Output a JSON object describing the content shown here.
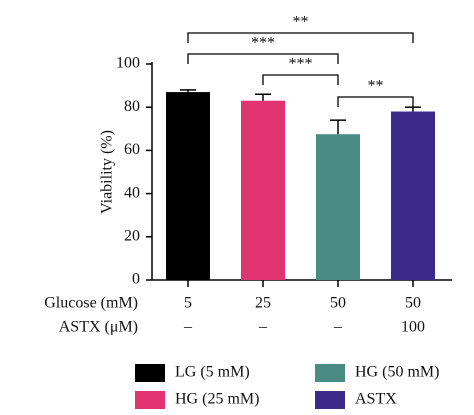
{
  "chart_data": {
    "type": "bar",
    "y_label": "Viability (%)",
    "categories": [
      "LG (5 mM)",
      "HG (25 mM)",
      "HG (50 mM)",
      "ASTX"
    ],
    "values": [
      87,
      83,
      67.5,
      78
    ],
    "errors": [
      1,
      3,
      6.5,
      2
    ],
    "colors": [
      "#000000",
      "#e0336f",
      "#4a8c84",
      "#3b2a8a"
    ],
    "ylim": [
      0,
      100
    ],
    "yticks": [
      0,
      20,
      40,
      60,
      80,
      100
    ],
    "annotations": [
      "**",
      "***",
      "***",
      "**"
    ],
    "x_table": [
      {
        "label": "Glucose (mM)",
        "values": [
          "5",
          "25",
          "50",
          "50"
        ]
      },
      {
        "label": "ASTX (μM)",
        "values": [
          "–",
          "–",
          "–",
          "100"
        ]
      }
    ]
  }
}
